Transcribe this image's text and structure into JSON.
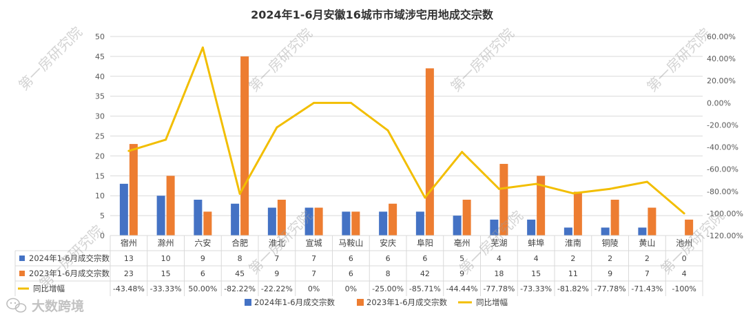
{
  "chart_data": {
    "type": "bar",
    "title": "2024年1-6月安徽16城市市域涉宅用地成交宗数",
    "categories": [
      "宿州",
      "滁州",
      "六安",
      "合肥",
      "淮北",
      "宣城",
      "马鞍山",
      "安庆",
      "阜阳",
      "亳州",
      "芜湖",
      "蚌埠",
      "淮南",
      "铜陵",
      "黄山",
      "池州"
    ],
    "series": [
      {
        "name": "2024年1-6月成交宗数",
        "type": "bar",
        "axis": "left",
        "color": "#4472C4",
        "values": [
          13,
          10,
          9,
          8,
          7,
          7,
          6,
          6,
          6,
          5,
          4,
          4,
          2,
          2,
          2,
          0
        ],
        "labels": [
          "13",
          "10",
          "9",
          "8",
          "7",
          "7",
          "6",
          "6",
          "6",
          "5",
          "4",
          "4",
          "2",
          "2",
          "2",
          "0"
        ]
      },
      {
        "name": "2023年1-6月成交宗数",
        "type": "bar",
        "axis": "left",
        "color": "#ED7D31",
        "values": [
          23,
          15,
          6,
          45,
          9,
          7,
          6,
          8,
          42,
          9,
          18,
          15,
          11,
          9,
          7,
          4
        ],
        "labels": [
          "23",
          "15",
          "6",
          "45",
          "9",
          "7",
          "6",
          "8",
          "42",
          "9",
          "18",
          "15",
          "11",
          "9",
          "7",
          "4"
        ]
      },
      {
        "name": "同比增幅",
        "type": "line",
        "axis": "right",
        "color": "#F2BE00",
        "values": [
          -43.48,
          -33.33,
          50.0,
          -82.22,
          -22.22,
          0,
          0,
          -25.0,
          -85.71,
          -44.44,
          -77.78,
          -73.33,
          -81.82,
          -77.78,
          -71.43,
          -100
        ],
        "labels": [
          "-43.48%",
          "-33.33%",
          "50.00%",
          "-82.22%",
          "-22.22%",
          "0%",
          "0%",
          "-25.00%",
          "-85.71%",
          "-44.44%",
          "-77.78%",
          "-73.33%",
          "-81.82%",
          "-77.78%",
          "-71.43%",
          "-100%"
        ]
      }
    ],
    "y_left": {
      "min": 0,
      "max": 50,
      "step": 5,
      "ticks": [
        "0",
        "5",
        "10",
        "15",
        "20",
        "25",
        "30",
        "35",
        "40",
        "45",
        "50"
      ]
    },
    "y_right": {
      "min": -120,
      "max": 60,
      "step": 20,
      "ticks": [
        "-120.00%",
        "-100.00%",
        "-80.00%",
        "-60.00%",
        "-40.00%",
        "-20.00%",
        "0.00%",
        "20.00%",
        "40.00%",
        "60.00%"
      ]
    },
    "legend_position": "bottom",
    "grid": true
  },
  "watermark": {
    "text": "第一房研究院"
  },
  "brand": {
    "name": "大数跨境",
    "icon": "wechat-brand-icon"
  }
}
